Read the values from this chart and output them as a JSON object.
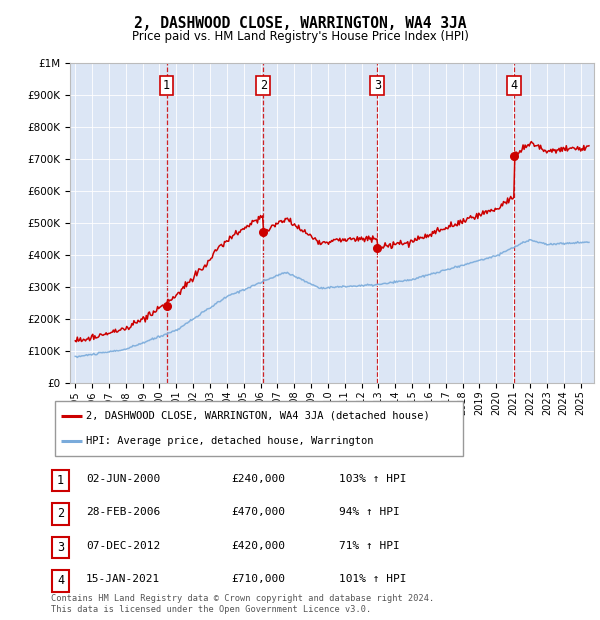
{
  "title": "2, DASHWOOD CLOSE, WARRINGTON, WA4 3JA",
  "subtitle": "Price paid vs. HM Land Registry's House Price Index (HPI)",
  "plot_bg_color": "#dce6f5",
  "ylim": [
    0,
    1000000
  ],
  "yticks": [
    0,
    100000,
    200000,
    300000,
    400000,
    500000,
    600000,
    700000,
    800000,
    900000,
    1000000
  ],
  "ytick_labels": [
    "£0",
    "£100K",
    "£200K",
    "£300K",
    "£400K",
    "£500K",
    "£600K",
    "£700K",
    "£800K",
    "£900K",
    "£1M"
  ],
  "sale_dates_num": [
    2000.42,
    2006.16,
    2012.93,
    2021.04
  ],
  "sale_prices": [
    240000,
    470000,
    420000,
    710000
  ],
  "sale_labels": [
    "1",
    "2",
    "3",
    "4"
  ],
  "sale_line_color": "#cc0000",
  "hpi_line_color": "#7aabdb",
  "vline_color": "#cc0000",
  "legend_entries": [
    "2, DASHWOOD CLOSE, WARRINGTON, WA4 3JA (detached house)",
    "HPI: Average price, detached house, Warrington"
  ],
  "table_rows": [
    [
      "1",
      "02-JUN-2000",
      "£240,000",
      "103% ↑ HPI"
    ],
    [
      "2",
      "28-FEB-2006",
      "£470,000",
      "94% ↑ HPI"
    ],
    [
      "3",
      "07-DEC-2012",
      "£420,000",
      "71% ↑ HPI"
    ],
    [
      "4",
      "15-JAN-2021",
      "£710,000",
      "101% ↑ HPI"
    ]
  ],
  "footnote": "Contains HM Land Registry data © Crown copyright and database right 2024.\nThis data is licensed under the Open Government Licence v3.0.",
  "xmin": 1994.7,
  "xmax": 2025.8
}
